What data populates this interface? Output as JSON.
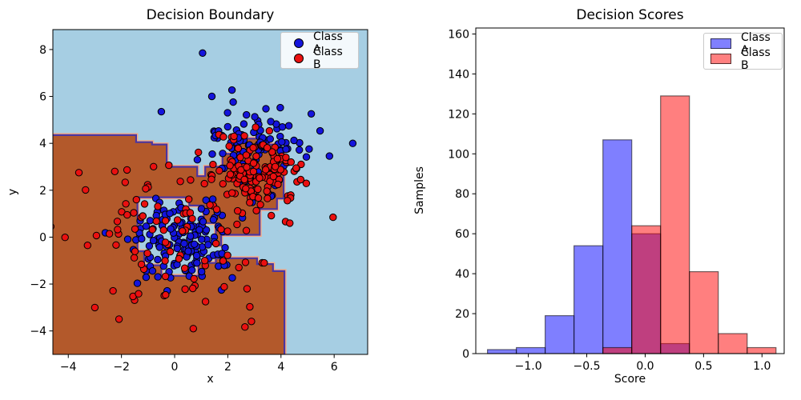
{
  "chart_data": [
    {
      "type": "scatter",
      "subtype": "decision-boundary-map",
      "title": "Decision Boundary",
      "xlabel": "x",
      "ylabel": "y",
      "xlim": [
        -4.58,
        7.26
      ],
      "ylim": [
        -5.0,
        8.85
      ],
      "grid": false,
      "xticks": [
        {
          "v": -4,
          "label": "−4"
        },
        {
          "v": -2,
          "label": "−2"
        },
        {
          "v": 0,
          "label": "0"
        },
        {
          "v": 2,
          "label": "2"
        },
        {
          "v": 4,
          "label": "4"
        },
        {
          "v": 6,
          "label": "6"
        }
      ],
      "yticks": [
        {
          "v": -4,
          "label": "−4"
        },
        {
          "v": -2,
          "label": "−2"
        },
        {
          "v": 0,
          "label": "0"
        },
        {
          "v": 2,
          "label": "2"
        },
        {
          "v": 4,
          "label": "4"
        },
        {
          "v": 6,
          "label": "6"
        },
        {
          "v": 8,
          "label": "8"
        }
      ],
      "legend": {
        "position": "upper right",
        "entries": [
          {
            "label": "Class A",
            "marker": "dot",
            "color": "#1414dc"
          },
          {
            "label": "Class B",
            "marker": "dot",
            "color": "#ea1010"
          }
        ]
      },
      "regions": {
        "class_a_fill": "#a6cee3",
        "class_b_fill": "#b3592b",
        "fringe_outer": "#f6ac85",
        "fringe_inner": "#4b35a0",
        "class_b_polygon": [
          [
            -4.8,
            -5.3
          ],
          [
            -4.8,
            4.35
          ],
          [
            -1.45,
            4.35
          ],
          [
            -1.45,
            4.05
          ],
          [
            -0.85,
            4.05
          ],
          [
            -0.85,
            3.95
          ],
          [
            -0.3,
            3.95
          ],
          [
            -0.3,
            3.0
          ],
          [
            0.85,
            3.0
          ],
          [
            0.85,
            2.6
          ],
          [
            1.15,
            2.6
          ],
          [
            1.15,
            3.0
          ],
          [
            1.8,
            3.0
          ],
          [
            1.8,
            3.55
          ],
          [
            2.2,
            3.55
          ],
          [
            2.2,
            4.0
          ],
          [
            2.55,
            4.0
          ],
          [
            2.55,
            4.2
          ],
          [
            3.55,
            4.2
          ],
          [
            3.55,
            3.95
          ],
          [
            3.9,
            3.95
          ],
          [
            3.9,
            3.6
          ],
          [
            4.1,
            3.6
          ],
          [
            4.1,
            1.65
          ],
          [
            3.85,
            1.65
          ],
          [
            3.85,
            1.2
          ],
          [
            3.2,
            1.2
          ],
          [
            3.2,
            0.1
          ],
          [
            1.75,
            0.1
          ],
          [
            1.75,
            -0.35
          ],
          [
            1.55,
            -0.35
          ],
          [
            1.55,
            0.6
          ],
          [
            1.1,
            0.6
          ],
          [
            1.1,
            1.35
          ],
          [
            0.55,
            1.35
          ],
          [
            0.55,
            1.7
          ],
          [
            -1.4,
            1.7
          ],
          [
            -1.4,
            -0.6
          ],
          [
            -1.15,
            -0.6
          ],
          [
            -1.15,
            -1.2
          ],
          [
            -0.5,
            -1.2
          ],
          [
            -0.5,
            -1.65
          ],
          [
            0.9,
            -1.65
          ],
          [
            0.9,
            -1.1
          ],
          [
            1.55,
            -1.1
          ],
          [
            1.55,
            -0.9
          ],
          [
            3.1,
            -0.9
          ],
          [
            3.1,
            -1.15
          ],
          [
            3.7,
            -1.15
          ],
          [
            3.7,
            -1.45
          ],
          [
            4.13,
            -1.45
          ],
          [
            4.13,
            -5.3
          ]
        ]
      },
      "scatter": {
        "point_radius": 4.2,
        "edge_color": "#000000",
        "classes": [
          {
            "name": "Class A",
            "color": "#1414dc",
            "n_total": 250,
            "clusters": [
              {
                "n": 150,
                "cx": 0.25,
                "cy": -0.1,
                "sx": 0.95,
                "sy": 0.95
              },
              {
                "n": 96,
                "cx": 3.2,
                "cy": 3.9,
                "sx": 0.95,
                "sy": 0.8
              }
            ],
            "extra_points": [
              [
                1.05,
                7.85
              ],
              [
                -0.5,
                5.35
              ],
              [
                1.4,
                6.0
              ],
              [
                6.7,
                4.0
              ]
            ]
          },
          {
            "name": "Class B",
            "color": "#ea1010",
            "n_total": 250,
            "clusters": [
              {
                "n": 150,
                "cx": 3.0,
                "cy": 2.75,
                "sx": 0.8,
                "sy": 0.75
              },
              {
                "n": 97,
                "cx": 0.0,
                "cy": 0.1,
                "sx": 1.9,
                "sy": 1.7
              }
            ],
            "extra_points": [
              [
                -3.6,
                2.75
              ],
              [
                -3.0,
                -3.0
              ],
              [
                0.7,
                -3.9
              ]
            ]
          }
        ]
      }
    },
    {
      "type": "bar",
      "subtype": "overlaid-histogram",
      "title": "Decision Scores",
      "xlabel": "Score",
      "ylabel": "Samples",
      "xlim": [
        -1.45,
        1.19
      ],
      "ylim": [
        0,
        163
      ],
      "grid": false,
      "bin_start": -1.35,
      "bin_width": 0.247,
      "xticks": [
        {
          "v": -1.0,
          "label": "−1.0"
        },
        {
          "v": -0.5,
          "label": "−0.5"
        },
        {
          "v": 0.0,
          "label": "0.0"
        },
        {
          "v": 0.5,
          "label": "0.5"
        },
        {
          "v": 1.0,
          "label": "1.0"
        }
      ],
      "yticks": [
        {
          "v": 0,
          "label": "0"
        },
        {
          "v": 20,
          "label": "20"
        },
        {
          "v": 40,
          "label": "40"
        },
        {
          "v": 60,
          "label": "60"
        },
        {
          "v": 80,
          "label": "80"
        },
        {
          "v": 100,
          "label": "100"
        },
        {
          "v": 120,
          "label": "120"
        },
        {
          "v": 140,
          "label": "140"
        },
        {
          "v": 160,
          "label": "160"
        }
      ],
      "series": [
        {
          "name": "Class A",
          "fill": "#0000ff",
          "fill_opacity": 0.5,
          "edge": "rgba(0,0,0,0.55)",
          "counts": [
            2,
            3,
            19,
            54,
            107,
            60,
            5,
            0,
            0,
            0
          ]
        },
        {
          "name": "Class B",
          "fill": "#ff0000",
          "fill_opacity": 0.5,
          "edge": "rgba(0,0,0,0.55)",
          "counts": [
            0,
            0,
            0,
            0,
            3,
            64,
            129,
            41,
            10,
            3
          ]
        }
      ],
      "legend": {
        "position": "upper right",
        "entries": [
          {
            "label": "Class A",
            "marker": "swatch",
            "color": "#8080ff"
          },
          {
            "label": "Class B",
            "marker": "swatch",
            "color": "#ff8080"
          }
        ]
      }
    }
  ]
}
